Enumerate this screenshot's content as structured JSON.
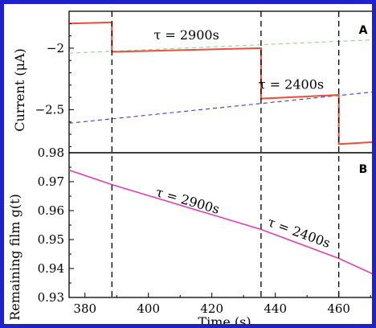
{
  "chart_data": [
    {
      "type": "line",
      "panel_label": "A",
      "ylabel": "Current (μA)",
      "ylim": [
        -2.85,
        -1.7
      ],
      "yticks": [
        -2,
        -2.5
      ],
      "ytick_labels": [
        "−2",
        "−2.5"
      ],
      "xlim": [
        375,
        473
      ],
      "series": [
        {
          "style": "solid",
          "color": "#e8503a",
          "x": [
            375,
            388.5,
            388.5,
            435.5,
            435.5,
            460,
            460,
            473
          ],
          "y": [
            -1.8,
            -1.79,
            -2.03,
            -2.0,
            -2.41,
            -2.38,
            -2.78,
            -2.76
          ]
        },
        {
          "style": "dashed",
          "color": "#8fd58f",
          "x": [
            375,
            473
          ],
          "y": [
            -2.04,
            -1.93
          ]
        },
        {
          "style": "dashed",
          "color": "#3a3ae0",
          "x": [
            375,
            473
          ],
          "y": [
            -2.61,
            -2.35
          ]
        }
      ],
      "annotations": [
        {
          "text": "τ = 2900s",
          "x": 412,
          "y": -1.93
        },
        {
          "text": "τ = 2400s",
          "x": 445,
          "y": -2.33
        }
      ]
    },
    {
      "type": "line",
      "panel_label": "B",
      "xlabel": "Time (s)",
      "ylabel": "Remaining film g(t)",
      "xlim": [
        375,
        473
      ],
      "ylim": [
        0.93,
        0.98
      ],
      "xticks": [
        380,
        400,
        420,
        440,
        460
      ],
      "yticks": [
        0.93,
        0.94,
        0.95,
        0.96,
        0.97,
        0.98
      ],
      "series": [
        {
          "style": "solid",
          "color": "#e040b0",
          "x": [
            375,
            388.5,
            435.5,
            460,
            473
          ],
          "y": [
            0.974,
            0.969,
            0.9535,
            0.9435,
            0.937
          ]
        }
      ],
      "annotations": [
        {
          "text": "τ = 2900s",
          "x": 412,
          "y": 0.962,
          "angle": 16
        },
        {
          "text": "τ = 2400s",
          "x": 447,
          "y": 0.951,
          "angle": 20
        }
      ]
    }
  ],
  "event_lines_x": [
    388.5,
    435.5,
    460
  ]
}
